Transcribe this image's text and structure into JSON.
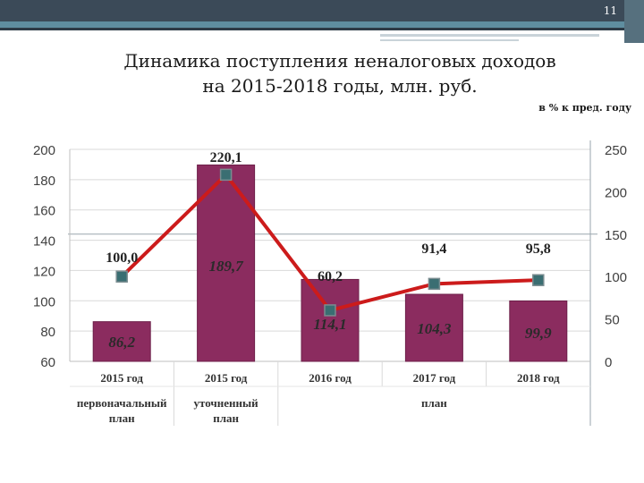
{
  "slide": {
    "number": "11"
  },
  "header": {
    "title_line1": "Динамика поступления неналоговых доходов",
    "title_line2": "на 2015-2018 годы, млн. руб.",
    "right_note": "в % к пред. году"
  },
  "colors": {
    "bar": "#8b2c5f",
    "line": "#cc1b1b",
    "marker": "#3a6e72"
  },
  "chart_data": {
    "type": "bar",
    "categories": [
      "2015 год",
      "2015 год",
      "2016 год",
      "2017 год",
      "2018 год"
    ],
    "category_groups": [
      {
        "label": "первоначальный план",
        "lines": [
          "первоначальный",
          "план"
        ]
      },
      {
        "label": "уточненный план",
        "lines": [
          "уточненный",
          "план"
        ]
      },
      {
        "label": "план",
        "lines": [
          "план"
        ]
      }
    ],
    "series": [
      {
        "type": "bar",
        "axis": "left",
        "values": [
          86.2,
          189.7,
          114.1,
          104.3,
          99.9
        ],
        "labels": [
          "86,2",
          "189,7",
          "114,1",
          "104,3",
          "99,9"
        ]
      },
      {
        "type": "line",
        "axis": "right",
        "values": [
          100.0,
          220.1,
          60.2,
          91.4,
          95.8
        ],
        "labels": [
          "100,0",
          "220,1",
          "60,2",
          "91,4",
          "95,8"
        ]
      }
    ],
    "left_axis": {
      "ylim": [
        60,
        200
      ],
      "ticks": [
        60,
        80,
        100,
        120,
        140,
        160,
        180,
        200
      ]
    },
    "right_axis": {
      "ylim": [
        0,
        250
      ],
      "ticks": [
        0,
        50,
        100,
        150,
        200,
        250
      ]
    }
  }
}
